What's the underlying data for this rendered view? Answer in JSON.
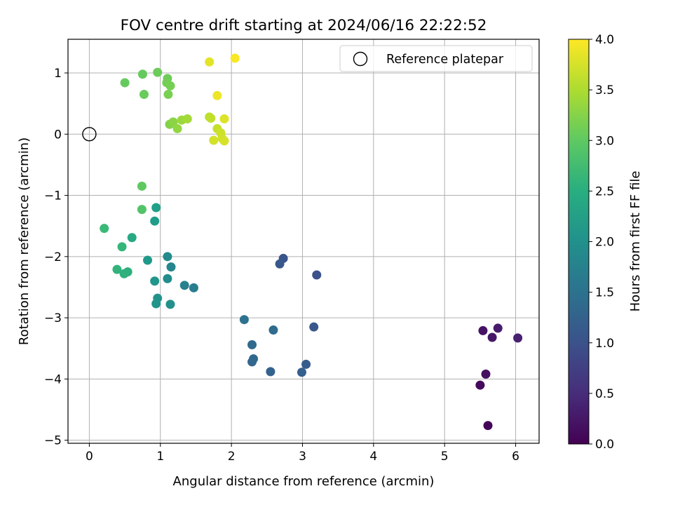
{
  "chart_data": {
    "type": "scatter",
    "title": "FOV centre drift starting at 2024/06/16 22:22:52",
    "xlabel": "Angular distance from reference (arcmin)",
    "ylabel": "Rotation from reference (arcmin)",
    "xlim": [
      -0.3,
      6.33
    ],
    "ylim": [
      -5.05,
      1.55
    ],
    "xticks": [
      0,
      1,
      2,
      3,
      4,
      5,
      6
    ],
    "yticks": [
      -5,
      -4,
      -3,
      -2,
      -1,
      0,
      1
    ],
    "grid": true,
    "legend": {
      "placement": "top-right",
      "label": "Reference platepar"
    },
    "reference_point": {
      "x": 0,
      "y": 0
    },
    "colorbar": {
      "label": "Hours from first FF file",
      "colormap": "viridis",
      "range": [
        0.0,
        4.0
      ],
      "ticks": [
        "0.0",
        "0.5",
        "1.0",
        "1.5",
        "2.0",
        "2.5",
        "3.0",
        "3.5",
        "4.0"
      ]
    },
    "points": [
      {
        "x": 5.61,
        "y": -4.76,
        "hours": 0.05
      },
      {
        "x": 5.5,
        "y": -4.1,
        "hours": 0.1
      },
      {
        "x": 5.58,
        "y": -3.92,
        "hours": 0.15
      },
      {
        "x": 5.54,
        "y": -3.21,
        "hours": 0.2
      },
      {
        "x": 5.67,
        "y": -3.32,
        "hours": 0.25
      },
      {
        "x": 5.75,
        "y": -3.17,
        "hours": 0.3
      },
      {
        "x": 6.03,
        "y": -3.33,
        "hours": 0.35
      },
      {
        "x": 3.2,
        "y": -2.3,
        "hours": 1.0
      },
      {
        "x": 2.73,
        "y": -2.03,
        "hours": 1.05
      },
      {
        "x": 2.68,
        "y": -2.12,
        "hours": 1.08
      },
      {
        "x": 3.16,
        "y": -3.15,
        "hours": 1.1
      },
      {
        "x": 3.05,
        "y": -3.76,
        "hours": 1.15
      },
      {
        "x": 2.99,
        "y": -3.89,
        "hours": 1.2
      },
      {
        "x": 2.55,
        "y": -3.88,
        "hours": 1.25
      },
      {
        "x": 2.29,
        "y": -3.72,
        "hours": 1.3
      },
      {
        "x": 2.31,
        "y": -3.67,
        "hours": 1.33
      },
      {
        "x": 2.29,
        "y": -3.44,
        "hours": 1.36
      },
      {
        "x": 2.59,
        "y": -3.2,
        "hours": 1.4
      },
      {
        "x": 2.18,
        "y": -3.03,
        "hours": 1.5
      },
      {
        "x": 1.47,
        "y": -2.51,
        "hours": 1.7
      },
      {
        "x": 1.34,
        "y": -2.47,
        "hours": 1.75
      },
      {
        "x": 1.15,
        "y": -2.17,
        "hours": 1.85
      },
      {
        "x": 1.1,
        "y": -2.0,
        "hours": 1.9
      },
      {
        "x": 1.1,
        "y": -2.36,
        "hours": 1.95
      },
      {
        "x": 1.14,
        "y": -2.78,
        "hours": 2.0
      },
      {
        "x": 0.96,
        "y": -2.68,
        "hours": 2.05
      },
      {
        "x": 0.94,
        "y": -2.77,
        "hours": 2.08
      },
      {
        "x": 0.92,
        "y": -2.4,
        "hours": 2.1
      },
      {
        "x": 0.82,
        "y": -2.06,
        "hours": 2.15
      },
      {
        "x": 0.92,
        "y": -1.42,
        "hours": 2.2
      },
      {
        "x": 0.94,
        "y": -1.2,
        "hours": 2.25
      },
      {
        "x": 0.6,
        "y": -1.69,
        "hours": 2.4
      },
      {
        "x": 0.54,
        "y": -2.25,
        "hours": 2.5
      },
      {
        "x": 0.49,
        "y": -2.28,
        "hours": 2.55
      },
      {
        "x": 0.39,
        "y": -2.21,
        "hours": 2.6
      },
      {
        "x": 0.46,
        "y": -1.84,
        "hours": 2.65
      },
      {
        "x": 0.21,
        "y": -1.54,
        "hours": 2.7
      },
      {
        "x": 0.74,
        "y": -1.23,
        "hours": 2.9
      },
      {
        "x": 0.74,
        "y": -0.85,
        "hours": 3.0
      },
      {
        "x": 0.5,
        "y": 0.84,
        "hours": 3.05
      },
      {
        "x": 0.75,
        "y": 0.98,
        "hours": 3.05
      },
      {
        "x": 0.77,
        "y": 0.65,
        "hours": 3.08
      },
      {
        "x": 0.96,
        "y": 1.01,
        "hours": 3.1
      },
      {
        "x": 1.1,
        "y": 0.91,
        "hours": 3.12
      },
      {
        "x": 1.09,
        "y": 0.84,
        "hours": 3.14
      },
      {
        "x": 1.14,
        "y": 0.79,
        "hours": 3.16
      },
      {
        "x": 1.11,
        "y": 0.65,
        "hours": 3.18
      },
      {
        "x": 1.13,
        "y": 0.16,
        "hours": 3.25
      },
      {
        "x": 1.18,
        "y": 0.2,
        "hours": 3.3
      },
      {
        "x": 1.24,
        "y": 0.09,
        "hours": 3.35
      },
      {
        "x": 1.3,
        "y": 0.23,
        "hours": 3.4
      },
      {
        "x": 1.38,
        "y": 0.25,
        "hours": 3.45
      },
      {
        "x": 1.69,
        "y": 0.28,
        "hours": 3.6
      },
      {
        "x": 1.71,
        "y": 0.26,
        "hours": 3.62
      },
      {
        "x": 1.8,
        "y": 0.09,
        "hours": 3.66
      },
      {
        "x": 1.85,
        "y": 0.02,
        "hours": 3.7
      },
      {
        "x": 1.87,
        "y": -0.07,
        "hours": 3.72
      },
      {
        "x": 1.75,
        "y": -0.1,
        "hours": 3.74
      },
      {
        "x": 1.9,
        "y": -0.11,
        "hours": 3.76
      },
      {
        "x": 1.9,
        "y": 0.25,
        "hours": 3.8
      },
      {
        "x": 1.69,
        "y": 1.18,
        "hours": 3.85
      },
      {
        "x": 1.8,
        "y": 0.63,
        "hours": 3.9
      },
      {
        "x": 2.05,
        "y": 1.24,
        "hours": 3.98
      }
    ]
  }
}
